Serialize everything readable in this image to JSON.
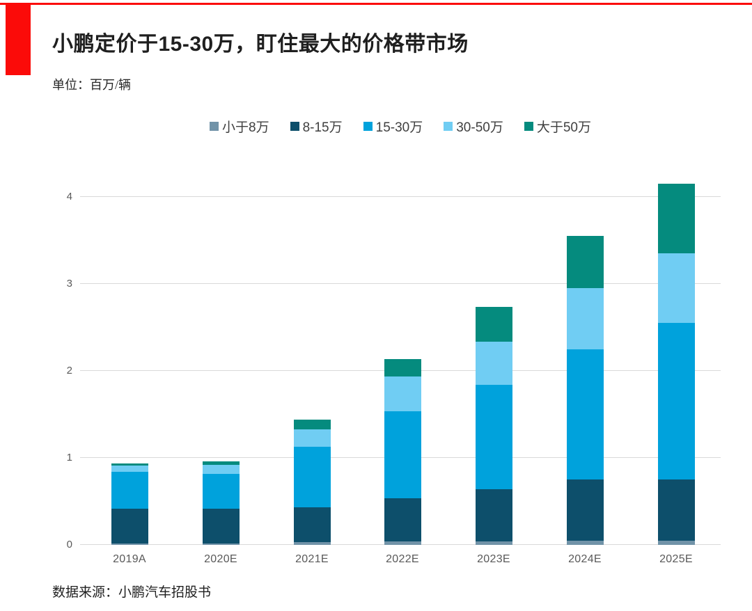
{
  "page": {
    "accent_color": "#fb0b09",
    "background_color": "#ffffff"
  },
  "header": {
    "title": "小鹏定价于15-30万，盯住最大的价格带市场",
    "unit_label": "单位：百万/辆"
  },
  "footer": {
    "source": "数据来源：小鹏汽车招股书"
  },
  "chart_data": {
    "type": "bar",
    "stacked": true,
    "title": "小鹏定价于15-30万，盯住最大的价格带市场",
    "unit": "百万/辆",
    "categories": [
      "2019A",
      "2020E",
      "2021E",
      "2022E",
      "2023E",
      "2024E",
      "2025E"
    ],
    "series": [
      {
        "name": "小于8万",
        "color": "#7193a8",
        "values": [
          0.02,
          0.02,
          0.03,
          0.04,
          0.04,
          0.05,
          0.05
        ]
      },
      {
        "name": "8-15万",
        "color": "#0d4f6b",
        "values": [
          0.4,
          0.4,
          0.4,
          0.5,
          0.6,
          0.7,
          0.7
        ]
      },
      {
        "name": "15-30万",
        "color": "#00a2dc",
        "values": [
          0.42,
          0.4,
          0.7,
          1.0,
          1.2,
          1.5,
          1.8
        ]
      },
      {
        "name": "30-50万",
        "color": "#70cdf3",
        "values": [
          0.07,
          0.1,
          0.2,
          0.4,
          0.5,
          0.7,
          0.8
        ]
      },
      {
        "name": "大于50万",
        "color": "#058b7e",
        "values": [
          0.03,
          0.04,
          0.11,
          0.2,
          0.4,
          0.6,
          0.8
        ]
      }
    ],
    "totals": [
      0.94,
      0.96,
      1.44,
      2.14,
      2.74,
      3.55,
      4.15
    ],
    "yticks": [
      0,
      1,
      2,
      3,
      4
    ],
    "ylim": [
      0,
      4.34
    ],
    "grid": "horizontal",
    "legend_position": "top-center",
    "axis_text_color": "#595959",
    "gridline_color": "#d9d9d9"
  }
}
